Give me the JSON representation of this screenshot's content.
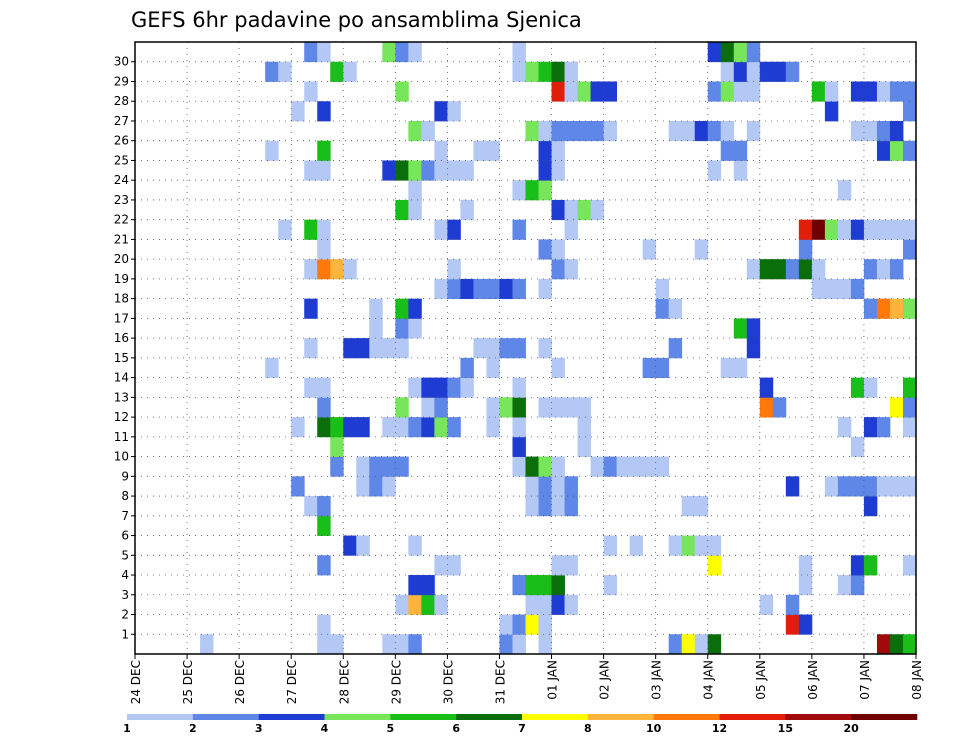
{
  "chart_data": {
    "type": "heatmap",
    "title": "GEFS 6hr padavine po ansamblima Sjenica",
    "xlabel": "",
    "ylabel": "",
    "x_ticks": [
      "24 DEC",
      "25 DEC",
      "26 DEC",
      "27 DEC",
      "28 DEC",
      "29 DEC",
      "30 DEC",
      "31 DEC",
      "01 JAN",
      "02 JAN",
      "03 JAN",
      "04 JAN",
      "05 JAN",
      "06 JAN",
      "07 JAN",
      "08 JAN"
    ],
    "y_ticks": [
      "1",
      "2",
      "3",
      "4",
      "5",
      "6",
      "7",
      "8",
      "9",
      "10",
      "11",
      "12",
      "13",
      "14",
      "15",
      "16",
      "17",
      "18",
      "19",
      "20",
      "21",
      "22",
      "23",
      "24",
      "25",
      "26",
      "27",
      "28",
      "29",
      "30"
    ],
    "grid": true,
    "legend": {
      "placement": "bottom",
      "labels": [
        "1",
        "2",
        "3",
        "4",
        "5",
        "6",
        "7",
        "8",
        "10",
        "12",
        "15",
        "20"
      ],
      "colors": [
        "#b4c8f5",
        "#5f87e8",
        "#1e3cd2",
        "#78e65a",
        "#19be19",
        "#0a6e0a",
        "#ffff00",
        "#ffb43c",
        "#ff780a",
        "#e11e0a",
        "#a00a0a",
        "#6e0000"
      ]
    },
    "note_values": "Each cell value is 6-hour precipitation class (mm) for member y (0 = bottom control row) at 6-hour step x (0 = 24 DEC 00Z).",
    "cells": [
      [
        0,
        5,
        1
      ],
      [
        0,
        14,
        1
      ],
      [
        0,
        15,
        1
      ],
      [
        0,
        19,
        1
      ],
      [
        0,
        20,
        1
      ],
      [
        0,
        21,
        2
      ],
      [
        0,
        28,
        2
      ],
      [
        0,
        29,
        1
      ],
      [
        0,
        31,
        1
      ],
      [
        0,
        41,
        2
      ],
      [
        0,
        42,
        7
      ],
      [
        0,
        43,
        1
      ],
      [
        0,
        44,
        6
      ],
      [
        0,
        57,
        11
      ],
      [
        0,
        58,
        6
      ],
      [
        0,
        59,
        5
      ],
      [
        1,
        14,
        1
      ],
      [
        1,
        28,
        1
      ],
      [
        1,
        29,
        2
      ],
      [
        1,
        30,
        7
      ],
      [
        1,
        31,
        1
      ],
      [
        1,
        50,
        10
      ],
      [
        1,
        51,
        3
      ],
      [
        2,
        20,
        1
      ],
      [
        2,
        21,
        8
      ],
      [
        2,
        22,
        5
      ],
      [
        2,
        23,
        1
      ],
      [
        2,
        30,
        1
      ],
      [
        2,
        31,
        1
      ],
      [
        2,
        32,
        3
      ],
      [
        2,
        33,
        1
      ],
      [
        2,
        48,
        1
      ],
      [
        2,
        50,
        2
      ],
      [
        3,
        21,
        3
      ],
      [
        3,
        22,
        3
      ],
      [
        3,
        29,
        2
      ],
      [
        3,
        30,
        5
      ],
      [
        3,
        31,
        5
      ],
      [
        3,
        32,
        6
      ],
      [
        3,
        36,
        1
      ],
      [
        3,
        51,
        1
      ],
      [
        3,
        54,
        1
      ],
      [
        3,
        55,
        2
      ],
      [
        4,
        14,
        2
      ],
      [
        4,
        23,
        1
      ],
      [
        4,
        24,
        1
      ],
      [
        4,
        32,
        1
      ],
      [
        4,
        33,
        1
      ],
      [
        4,
        44,
        7
      ],
      [
        4,
        51,
        1
      ],
      [
        4,
        55,
        3
      ],
      [
        4,
        56,
        5
      ],
      [
        4,
        59,
        1
      ],
      [
        5,
        16,
        3
      ],
      [
        5,
        17,
        1
      ],
      [
        5,
        21,
        1
      ],
      [
        5,
        36,
        1
      ],
      [
        5,
        38,
        1
      ],
      [
        5,
        41,
        1
      ],
      [
        5,
        42,
        4
      ],
      [
        5,
        43,
        1
      ],
      [
        5,
        44,
        1
      ],
      [
        6,
        14,
        5
      ],
      [
        7,
        13,
        1
      ],
      [
        7,
        14,
        2
      ],
      [
        7,
        30,
        1
      ],
      [
        7,
        31,
        2
      ],
      [
        7,
        32,
        1
      ],
      [
        7,
        33,
        2
      ],
      [
        7,
        42,
        1
      ],
      [
        7,
        43,
        1
      ],
      [
        7,
        56,
        3
      ],
      [
        8,
        12,
        2
      ],
      [
        8,
        17,
        1
      ],
      [
        8,
        18,
        2
      ],
      [
        8,
        19,
        1
      ],
      [
        8,
        30,
        1
      ],
      [
        8,
        31,
        2
      ],
      [
        8,
        32,
        1
      ],
      [
        8,
        33,
        2
      ],
      [
        8,
        50,
        3
      ],
      [
        8,
        53,
        1
      ],
      [
        8,
        54,
        2
      ],
      [
        8,
        55,
        2
      ],
      [
        8,
        56,
        2
      ],
      [
        8,
        57,
        1
      ],
      [
        8,
        58,
        1
      ],
      [
        8,
        59,
        1
      ],
      [
        9,
        15,
        2
      ],
      [
        9,
        17,
        1
      ],
      [
        9,
        18,
        2
      ],
      [
        9,
        19,
        2
      ],
      [
        9,
        20,
        2
      ],
      [
        9,
        29,
        1
      ],
      [
        9,
        30,
        6
      ],
      [
        9,
        31,
        4
      ],
      [
        9,
        32,
        1
      ],
      [
        9,
        35,
        1
      ],
      [
        9,
        36,
        2
      ],
      [
        9,
        37,
        1
      ],
      [
        9,
        38,
        1
      ],
      [
        9,
        39,
        1
      ],
      [
        9,
        40,
        1
      ],
      [
        10,
        15,
        4
      ],
      [
        10,
        29,
        3
      ],
      [
        10,
        34,
        1
      ],
      [
        10,
        55,
        1
      ],
      [
        11,
        12,
        1
      ],
      [
        11,
        14,
        6
      ],
      [
        11,
        15,
        5
      ],
      [
        11,
        16,
        3
      ],
      [
        11,
        17,
        3
      ],
      [
        11,
        19,
        1
      ],
      [
        11,
        20,
        1
      ],
      [
        11,
        21,
        2
      ],
      [
        11,
        22,
        3
      ],
      [
        11,
        23,
        4
      ],
      [
        11,
        24,
        2
      ],
      [
        11,
        27,
        1
      ],
      [
        11,
        29,
        1
      ],
      [
        11,
        34,
        1
      ],
      [
        11,
        54,
        1
      ],
      [
        11,
        56,
        3
      ],
      [
        11,
        57,
        2
      ],
      [
        11,
        59,
        1
      ],
      [
        12,
        14,
        2
      ],
      [
        12,
        20,
        4
      ],
      [
        12,
        22,
        1
      ],
      [
        12,
        23,
        2
      ],
      [
        12,
        27,
        1
      ],
      [
        12,
        28,
        4
      ],
      [
        12,
        29,
        6
      ],
      [
        12,
        31,
        1
      ],
      [
        12,
        32,
        1
      ],
      [
        12,
        33,
        1
      ],
      [
        12,
        34,
        1
      ],
      [
        12,
        48,
        9
      ],
      [
        12,
        49,
        2
      ],
      [
        12,
        58,
        7
      ],
      [
        12,
        59,
        2
      ],
      [
        13,
        13,
        1
      ],
      [
        13,
        14,
        1
      ],
      [
        13,
        21,
        1
      ],
      [
        13,
        22,
        3
      ],
      [
        13,
        23,
        3
      ],
      [
        13,
        24,
        2
      ],
      [
        13,
        25,
        1
      ],
      [
        13,
        29,
        1
      ],
      [
        13,
        48,
        3
      ],
      [
        13,
        55,
        5
      ],
      [
        13,
        56,
        1
      ],
      [
        13,
        59,
        5
      ],
      [
        14,
        10,
        1
      ],
      [
        14,
        25,
        2
      ],
      [
        14,
        27,
        1
      ],
      [
        14,
        32,
        1
      ],
      [
        14,
        39,
        2
      ],
      [
        14,
        40,
        2
      ],
      [
        14,
        45,
        1
      ],
      [
        14,
        46,
        1
      ],
      [
        15,
        13,
        1
      ],
      [
        15,
        16,
        3
      ],
      [
        15,
        17,
        3
      ],
      [
        15,
        18,
        1
      ],
      [
        15,
        19,
        1
      ],
      [
        15,
        20,
        1
      ],
      [
        15,
        26,
        1
      ],
      [
        15,
        27,
        1
      ],
      [
        15,
        28,
        2
      ],
      [
        15,
        29,
        2
      ],
      [
        15,
        31,
        1
      ],
      [
        15,
        41,
        2
      ],
      [
        15,
        47,
        3
      ],
      [
        16,
        18,
        1
      ],
      [
        16,
        20,
        2
      ],
      [
        16,
        21,
        1
      ],
      [
        16,
        46,
        5
      ],
      [
        16,
        47,
        3
      ],
      [
        17,
        13,
        3
      ],
      [
        17,
        18,
        1
      ],
      [
        17,
        20,
        5
      ],
      [
        17,
        21,
        3
      ],
      [
        17,
        40,
        2
      ],
      [
        17,
        41,
        1
      ],
      [
        17,
        56,
        2
      ],
      [
        17,
        57,
        9
      ],
      [
        17,
        58,
        8
      ],
      [
        17,
        59,
        4
      ],
      [
        18,
        23,
        1
      ],
      [
        18,
        24,
        2
      ],
      [
        18,
        25,
        3
      ],
      [
        18,
        26,
        2
      ],
      [
        18,
        27,
        2
      ],
      [
        18,
        28,
        3
      ],
      [
        18,
        29,
        2
      ],
      [
        18,
        31,
        1
      ],
      [
        18,
        40,
        1
      ],
      [
        18,
        52,
        1
      ],
      [
        18,
        53,
        1
      ],
      [
        18,
        54,
        1
      ],
      [
        18,
        55,
        2
      ],
      [
        19,
        13,
        1
      ],
      [
        19,
        14,
        9
      ],
      [
        19,
        15,
        8
      ],
      [
        19,
        16,
        1
      ],
      [
        19,
        24,
        1
      ],
      [
        19,
        32,
        2
      ],
      [
        19,
        33,
        1
      ],
      [
        19,
        47,
        1
      ],
      [
        19,
        48,
        6
      ],
      [
        19,
        49,
        6
      ],
      [
        19,
        50,
        2
      ],
      [
        19,
        51,
        6
      ],
      [
        19,
        52,
        1
      ],
      [
        19,
        56,
        2
      ],
      [
        19,
        57,
        1
      ],
      [
        19,
        58,
        2
      ],
      [
        20,
        14,
        1
      ],
      [
        20,
        31,
        2
      ],
      [
        20,
        32,
        1
      ],
      [
        20,
        39,
        1
      ],
      [
        20,
        43,
        1
      ],
      [
        20,
        51,
        2
      ],
      [
        20,
        59,
        2
      ],
      [
        21,
        11,
        1
      ],
      [
        21,
        13,
        5
      ],
      [
        21,
        14,
        1
      ],
      [
        21,
        23,
        1
      ],
      [
        21,
        24,
        3
      ],
      [
        21,
        29,
        2
      ],
      [
        21,
        33,
        1
      ],
      [
        21,
        51,
        10
      ],
      [
        21,
        52,
        12
      ],
      [
        21,
        53,
        4
      ],
      [
        21,
        54,
        1
      ],
      [
        21,
        55,
        3
      ],
      [
        21,
        56,
        1
      ],
      [
        21,
        57,
        1
      ],
      [
        21,
        58,
        1
      ],
      [
        21,
        59,
        1
      ],
      [
        22,
        20,
        5
      ],
      [
        22,
        21,
        1
      ],
      [
        22,
        25,
        1
      ],
      [
        22,
        32,
        3
      ],
      [
        22,
        33,
        1
      ],
      [
        22,
        34,
        4
      ],
      [
        22,
        35,
        1
      ],
      [
        23,
        21,
        1
      ],
      [
        23,
        29,
        1
      ],
      [
        23,
        30,
        5
      ],
      [
        23,
        31,
        4
      ],
      [
        23,
        54,
        1
      ],
      [
        24,
        13,
        1
      ],
      [
        24,
        14,
        1
      ],
      [
        24,
        19,
        3
      ],
      [
        24,
        20,
        6
      ],
      [
        24,
        21,
        4
      ],
      [
        24,
        22,
        2
      ],
      [
        24,
        23,
        1
      ],
      [
        24,
        24,
        1
      ],
      [
        24,
        25,
        1
      ],
      [
        24,
        31,
        3
      ],
      [
        24,
        32,
        1
      ],
      [
        24,
        44,
        1
      ],
      [
        24,
        46,
        1
      ],
      [
        25,
        10,
        1
      ],
      [
        25,
        14,
        5
      ],
      [
        25,
        23,
        1
      ],
      [
        25,
        26,
        1
      ],
      [
        25,
        27,
        1
      ],
      [
        25,
        31,
        3
      ],
      [
        25,
        32,
        1
      ],
      [
        25,
        45,
        2
      ],
      [
        25,
        46,
        2
      ],
      [
        25,
        57,
        3
      ],
      [
        25,
        58,
        4
      ],
      [
        25,
        59,
        2
      ],
      [
        26,
        21,
        4
      ],
      [
        26,
        22,
        1
      ],
      [
        26,
        30,
        4
      ],
      [
        26,
        31,
        1
      ],
      [
        26,
        32,
        2
      ],
      [
        26,
        33,
        2
      ],
      [
        26,
        34,
        2
      ],
      [
        26,
        35,
        2
      ],
      [
        26,
        36,
        1
      ],
      [
        26,
        41,
        1
      ],
      [
        26,
        42,
        1
      ],
      [
        26,
        43,
        3
      ],
      [
        26,
        44,
        2
      ],
      [
        26,
        45,
        1
      ],
      [
        26,
        47,
        1
      ],
      [
        26,
        55,
        1
      ],
      [
        26,
        56,
        1
      ],
      [
        26,
        57,
        2
      ],
      [
        26,
        58,
        3
      ],
      [
        27,
        12,
        1
      ],
      [
        27,
        14,
        3
      ],
      [
        27,
        23,
        3
      ],
      [
        27,
        24,
        1
      ],
      [
        27,
        53,
        3
      ],
      [
        27,
        59,
        2
      ],
      [
        28,
        13,
        1
      ],
      [
        28,
        20,
        4
      ],
      [
        28,
        32,
        10
      ],
      [
        28,
        33,
        1
      ],
      [
        28,
        34,
        4
      ],
      [
        28,
        35,
        3
      ],
      [
        28,
        36,
        3
      ],
      [
        28,
        44,
        2
      ],
      [
        28,
        45,
        4
      ],
      [
        28,
        46,
        1
      ],
      [
        28,
        47,
        1
      ],
      [
        28,
        52,
        5
      ],
      [
        28,
        53,
        1
      ],
      [
        28,
        55,
        3
      ],
      [
        28,
        56,
        3
      ],
      [
        28,
        57,
        1
      ],
      [
        28,
        58,
        2
      ],
      [
        28,
        59,
        2
      ],
      [
        29,
        10,
        2
      ],
      [
        29,
        11,
        1
      ],
      [
        29,
        15,
        5
      ],
      [
        29,
        16,
        1
      ],
      [
        29,
        29,
        1
      ],
      [
        29,
        30,
        4
      ],
      [
        29,
        31,
        5
      ],
      [
        29,
        32,
        6
      ],
      [
        29,
        33,
        1
      ],
      [
        29,
        45,
        1
      ],
      [
        29,
        46,
        3
      ],
      [
        29,
        47,
        1
      ],
      [
        29,
        48,
        3
      ],
      [
        29,
        49,
        3
      ],
      [
        29,
        50,
        2
      ],
      [
        30,
        13,
        2
      ],
      [
        30,
        14,
        1
      ],
      [
        30,
        19,
        4
      ],
      [
        30,
        20,
        2
      ],
      [
        30,
        21,
        1
      ],
      [
        30,
        29,
        1
      ],
      [
        30,
        44,
        3
      ],
      [
        30,
        45,
        6
      ],
      [
        30,
        46,
        4
      ],
      [
        30,
        47,
        2
      ]
    ]
  }
}
